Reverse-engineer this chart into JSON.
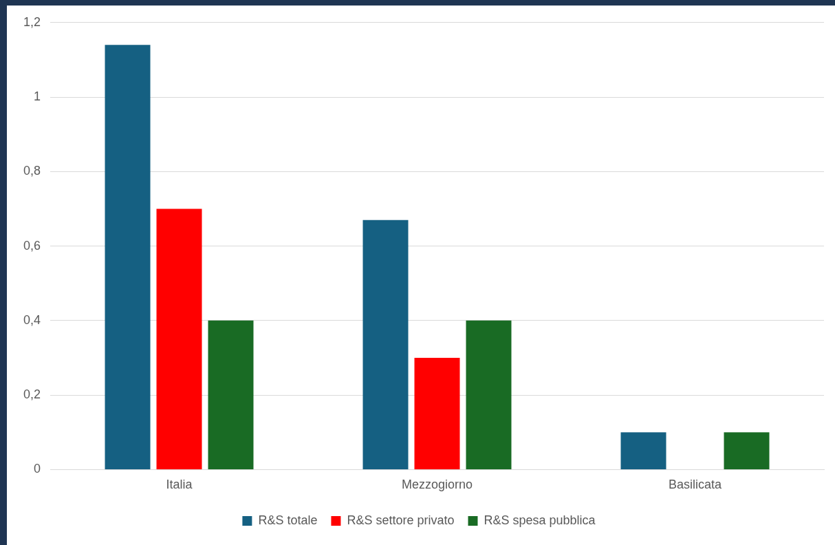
{
  "chart_data": {
    "type": "bar",
    "categories": [
      "Italia",
      "Mezzogiorno",
      "Basilicata"
    ],
    "series": [
      {
        "name": "R&S totale",
        "color": "#156082",
        "values": [
          1.14,
          0.67,
          0.1
        ]
      },
      {
        "name": "R&S settore privato",
        "color": "#ff0000",
        "values": [
          0.7,
          0.3,
          0
        ]
      },
      {
        "name": "R&S spesa pubblica",
        "color": "#196b24",
        "values": [
          0.4,
          0.4,
          0.1
        ]
      }
    ],
    "ylim": [
      0,
      1.2
    ],
    "yticks": [
      0,
      {
        "value": 0.2,
        "label": "0,2"
      },
      {
        "value": 0.4,
        "label": "0,4"
      },
      {
        "value": 0.6,
        "label": "0,6"
      },
      {
        "value": 0.8,
        "label": "0,8"
      },
      1,
      {
        "value": 1.2,
        "label": "1,2"
      }
    ],
    "grid": "y",
    "legend": "bottom"
  }
}
